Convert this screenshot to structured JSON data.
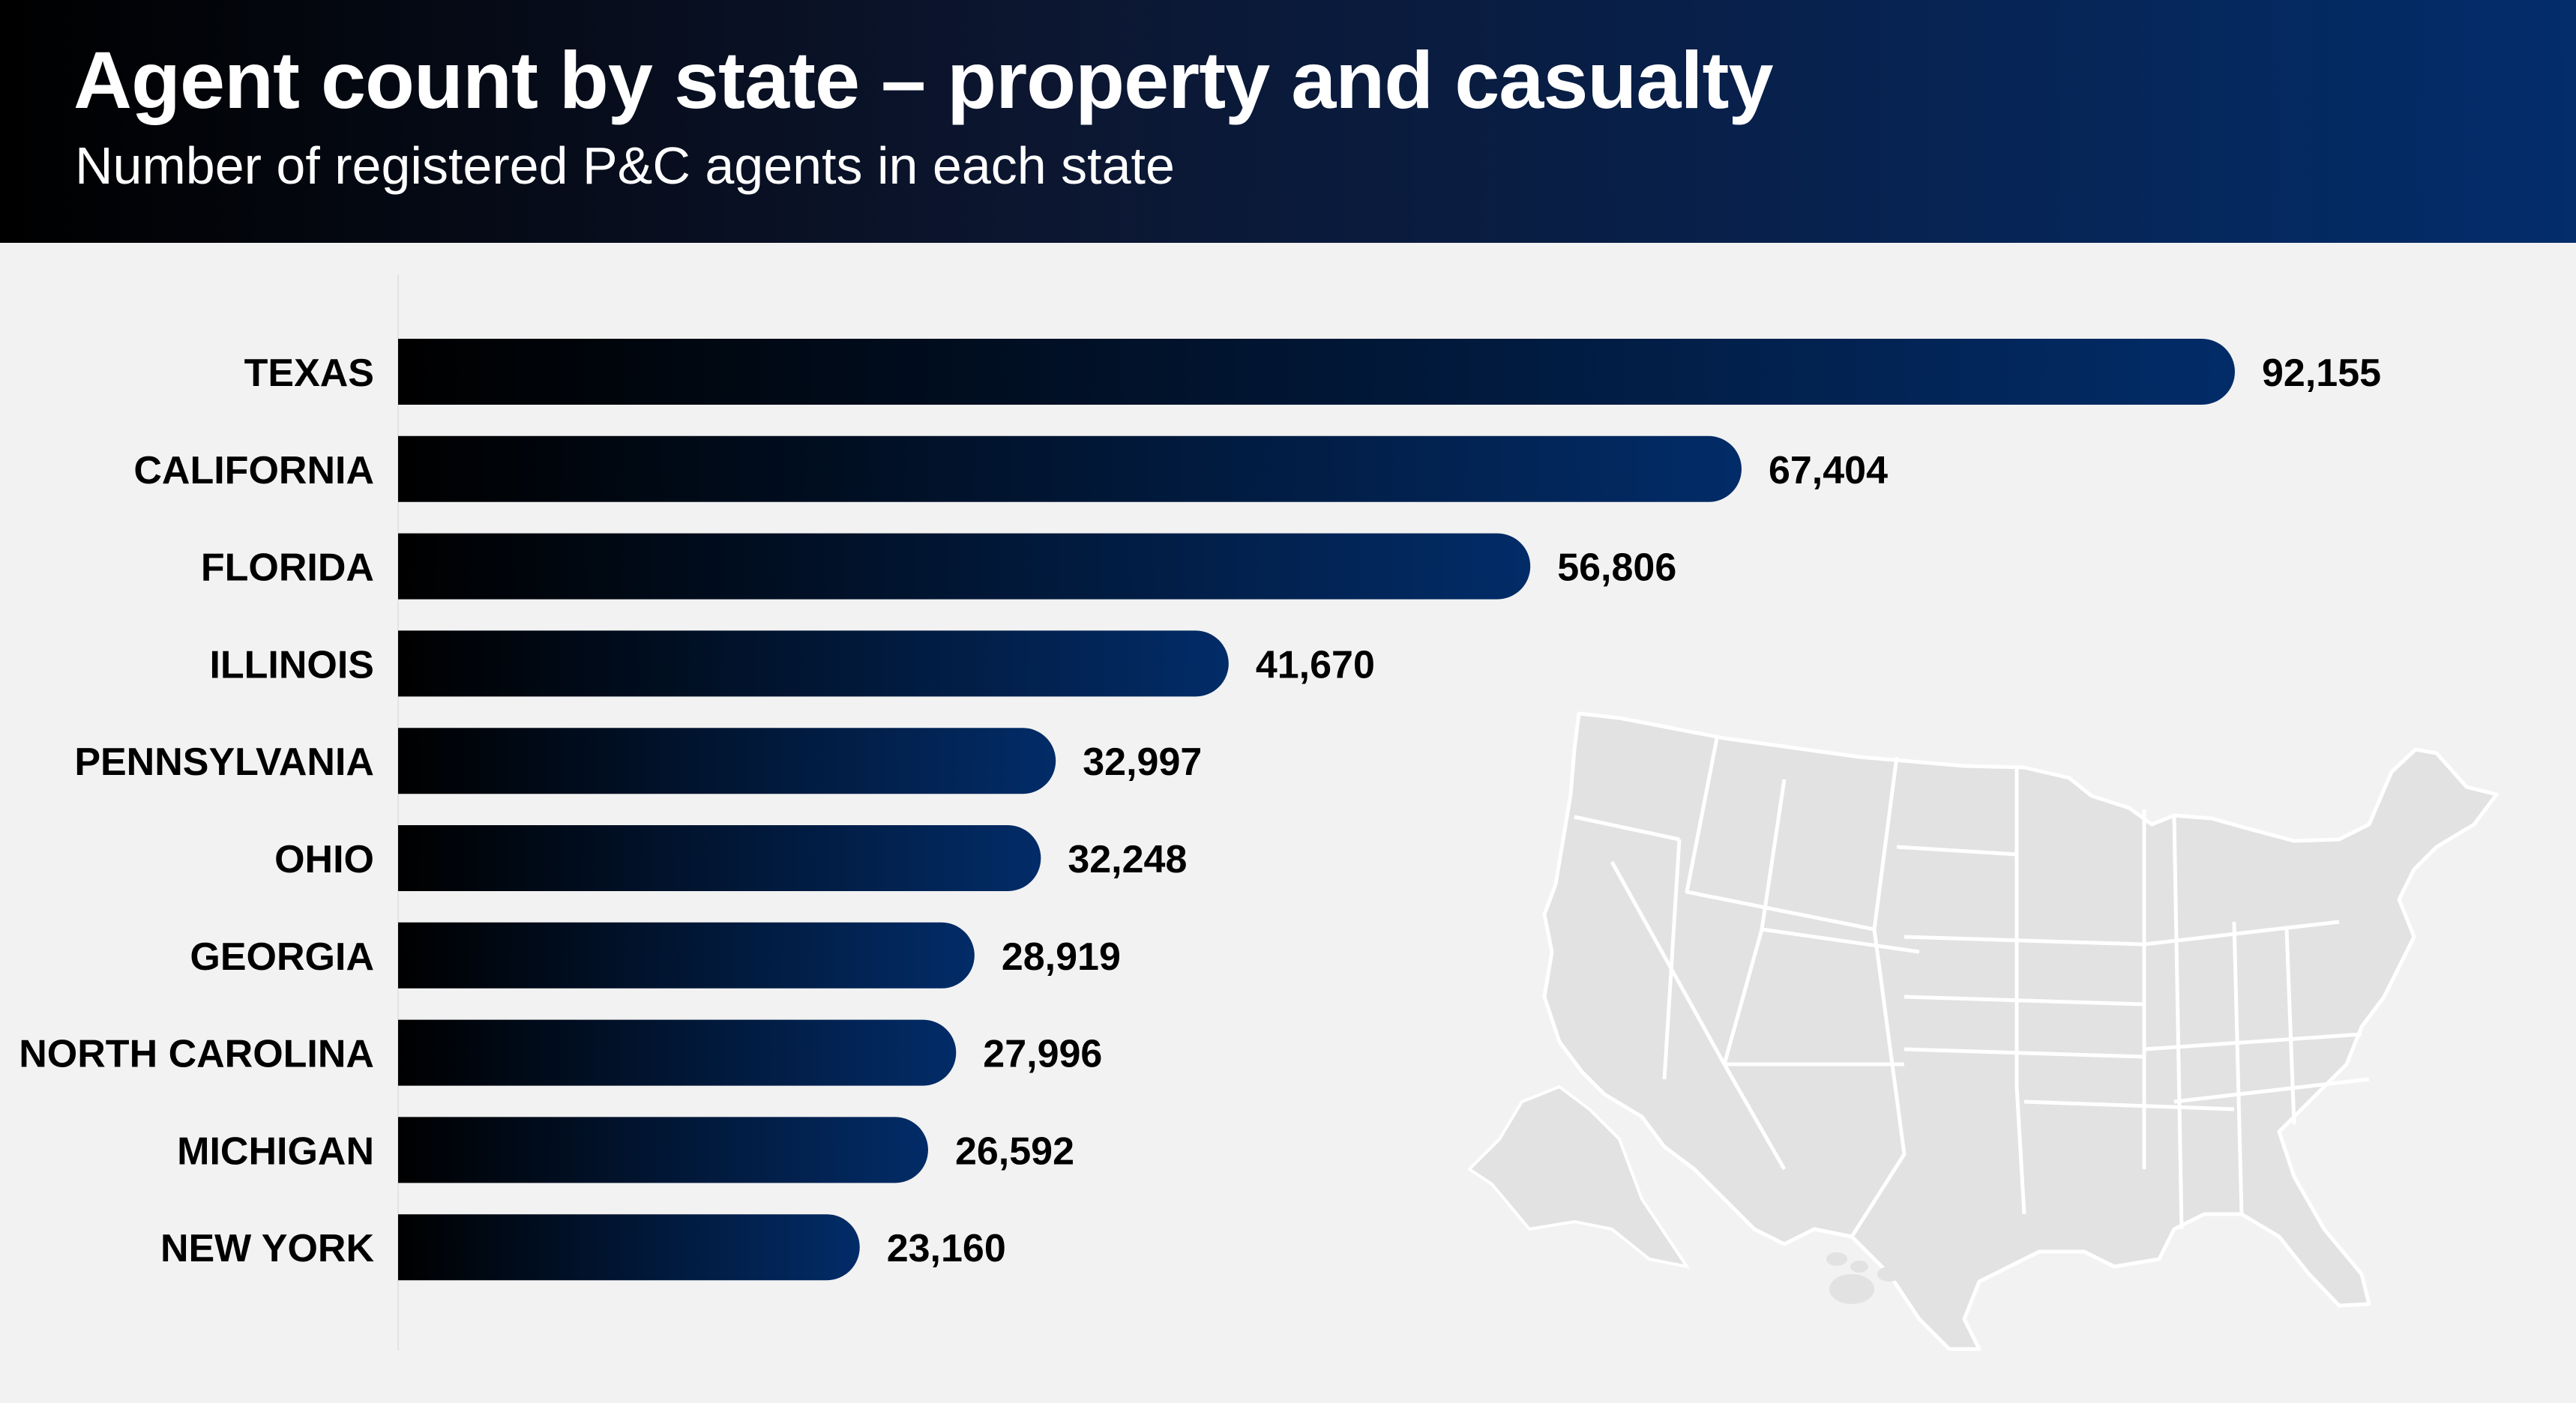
{
  "title": "Agent count by state – property and casualty",
  "subtitle": "Number of registered P&C agents in each state",
  "colors": {
    "bar_start": "#000000",
    "bar_end": "#022c68",
    "header_start": "#000000",
    "header_end": "#032d6b",
    "background": "#f2f2f2",
    "map_fill": "#e2e2e2"
  },
  "decoration": "us-map-silhouette",
  "chart_data": {
    "type": "bar",
    "orientation": "horizontal",
    "categories": [
      "TEXAS",
      "CALIFORNIA",
      "FLORIDA",
      "ILLINOIS",
      "PENNSYLVANIA",
      "OHIO",
      "GEORGIA",
      "NORTH CAROLINA",
      "MICHIGAN",
      "NEW YORK"
    ],
    "values": [
      92155,
      67404,
      56806,
      41670,
      32997,
      32248,
      28919,
      27996,
      26592,
      23160
    ],
    "value_labels": [
      "92,155",
      "67,404",
      "56,806",
      "41,670",
      "32,997",
      "32,248",
      "28,919",
      "27,996",
      "26,592",
      "23,160"
    ],
    "xlim": [
      0,
      92155
    ],
    "grid": false,
    "legend": "none"
  }
}
